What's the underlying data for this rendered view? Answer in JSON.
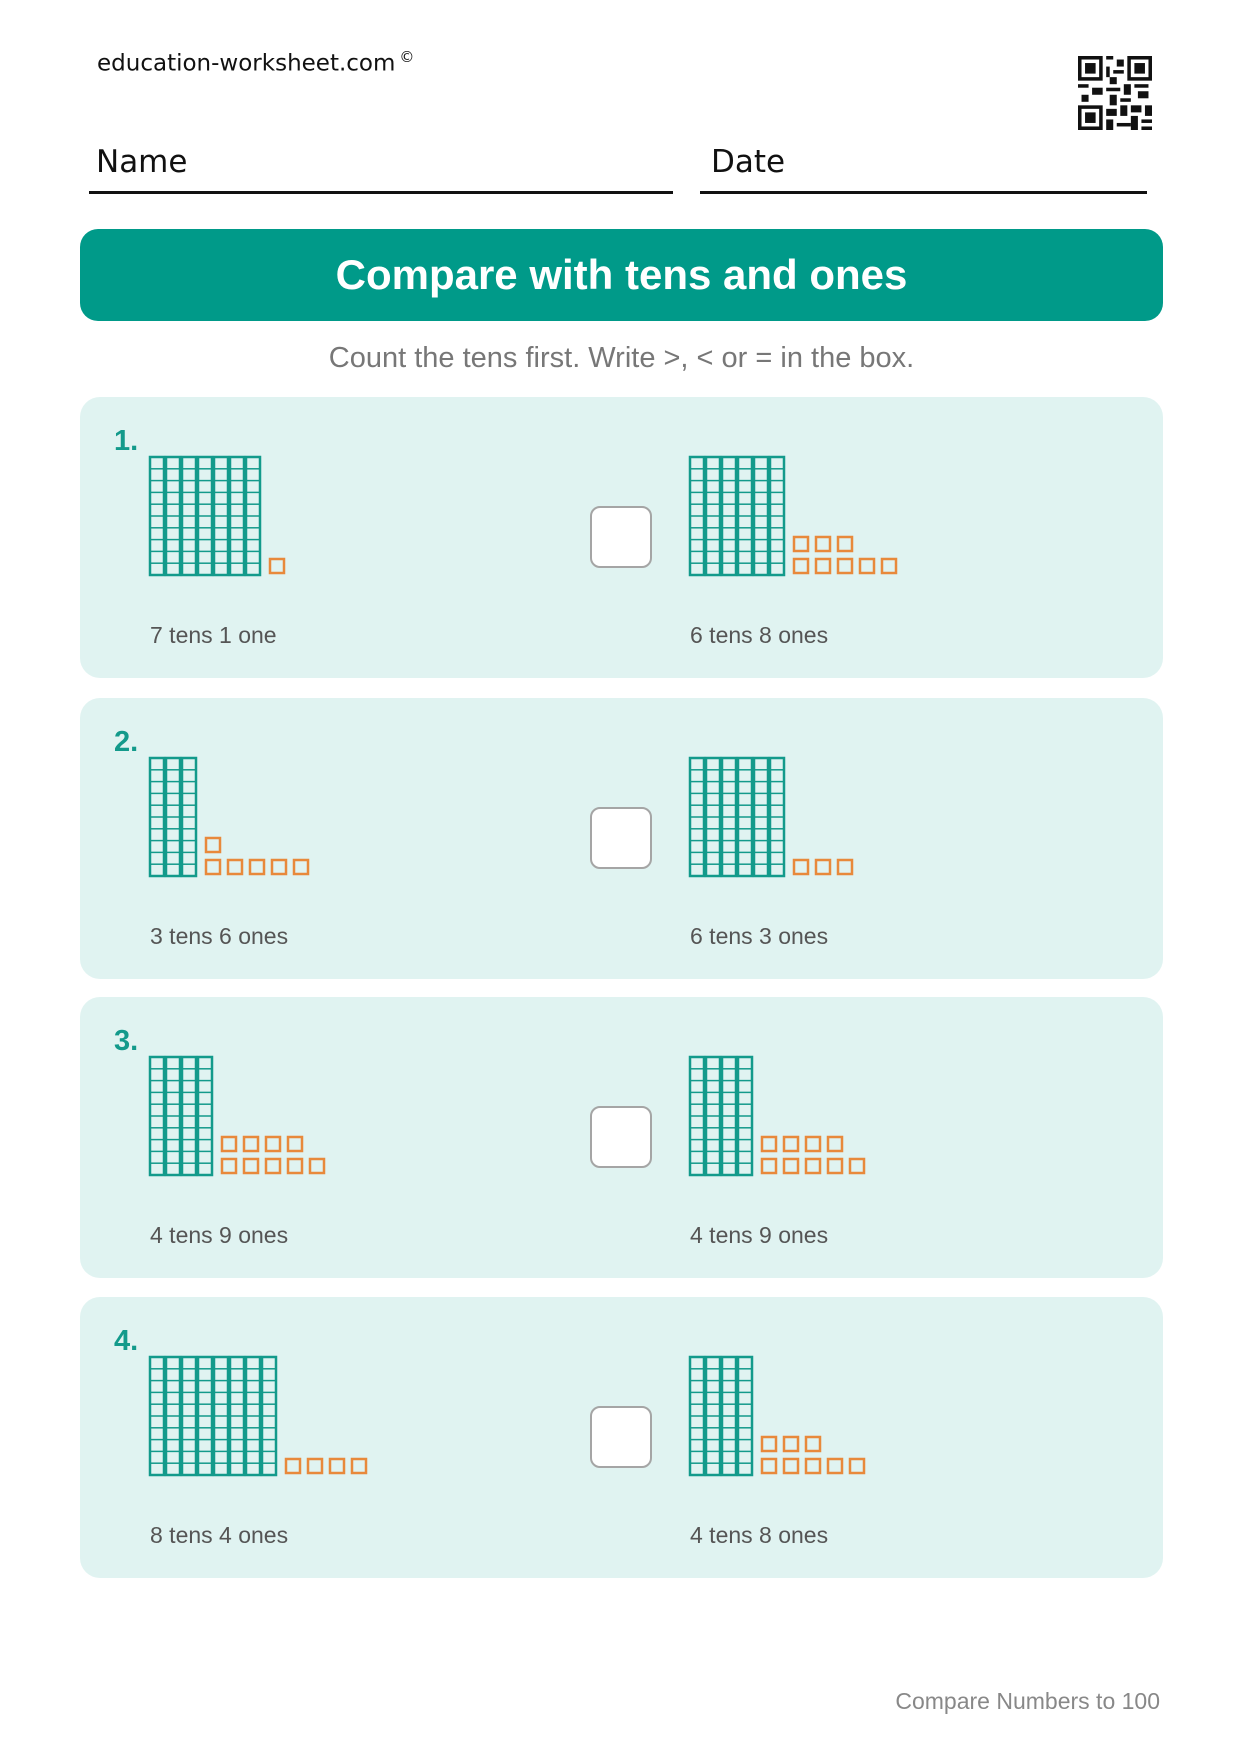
{
  "header": {
    "site": "education-worksheet.com",
    "copyright": "©",
    "name_label": "Name",
    "date_label": "Date"
  },
  "title": "Compare with tens and ones",
  "instructions": "Count the tens first. Write >, < or = in the box.",
  "problems": [
    {
      "number": "1.",
      "left": {
        "tens": 7,
        "ones": 1,
        "label": "7 tens 1 one"
      },
      "right": {
        "tens": 6,
        "ones": 8,
        "label": "6 tens 8 ones"
      }
    },
    {
      "number": "2.",
      "left": {
        "tens": 3,
        "ones": 6,
        "label": "3 tens 6 ones"
      },
      "right": {
        "tens": 6,
        "ones": 3,
        "label": "6 tens 3 ones"
      }
    },
    {
      "number": "3.",
      "left": {
        "tens": 4,
        "ones": 9,
        "label": "4 tens 9 ones"
      },
      "right": {
        "tens": 4,
        "ones": 9,
        "label": "4 tens 9 ones"
      }
    },
    {
      "number": "4.",
      "left": {
        "tens": 8,
        "ones": 4,
        "label": "8 tens 4 ones"
      },
      "right": {
        "tens": 4,
        "ones": 8,
        "label": "4 tens 8 ones"
      }
    }
  ],
  "footer": "Compare Numbers to 100",
  "colors": {
    "accent": "#009a89",
    "card": "#e0f3f1",
    "tens_rod": "#139a8b",
    "ones_cube": "#e8893b"
  }
}
